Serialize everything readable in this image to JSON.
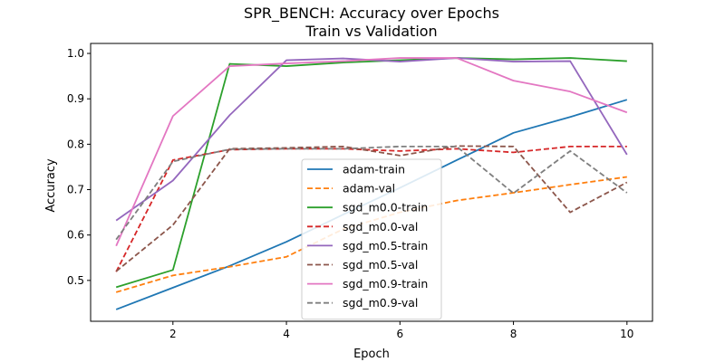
{
  "chart_data": {
    "type": "line",
    "title": "SPR_BENCH: Accuracy over Epochs",
    "subtitle": "Train vs Validation",
    "xlabel": "Epoch",
    "ylabel": "Accuracy",
    "xlim": [
      0.55,
      10.45
    ],
    "ylim": [
      0.41,
      1.022
    ],
    "xticks": [
      2,
      4,
      6,
      8,
      10
    ],
    "yticks": [
      0.5,
      0.6,
      0.7,
      0.8,
      0.9,
      1.0
    ],
    "ytick_labels": [
      "0.5",
      "0.6",
      "0.7",
      "0.8",
      "0.9",
      "1.0"
    ],
    "grid": false,
    "legend_position": "lower center",
    "x": [
      1,
      2,
      3,
      4,
      5,
      6,
      7,
      8,
      9,
      10
    ],
    "series": [
      {
        "name": "adam-train",
        "color": "#1f77b4",
        "dash": "solid",
        "values": [
          0.436,
          0.484,
          0.532,
          0.585,
          0.645,
          0.704,
          0.765,
          0.825,
          0.86,
          0.898
        ]
      },
      {
        "name": "adam-val",
        "color": "#ff7f0e",
        "dash": "dashed",
        "values": [
          0.474,
          0.511,
          0.53,
          0.552,
          0.613,
          0.65,
          0.676,
          0.693,
          0.711,
          0.728
        ]
      },
      {
        "name": "sgd_m0.0-train",
        "color": "#2ca02c",
        "dash": "solid",
        "values": [
          0.485,
          0.523,
          0.977,
          0.972,
          0.98,
          0.985,
          0.99,
          0.987,
          0.99,
          0.983
        ]
      },
      {
        "name": "sgd_m0.0-val",
        "color": "#d62728",
        "dash": "dashed",
        "values": [
          0.519,
          0.765,
          0.788,
          0.79,
          0.79,
          0.785,
          0.79,
          0.782,
          0.795,
          0.795
        ]
      },
      {
        "name": "sgd_m0.5-train",
        "color": "#9467bd",
        "dash": "solid",
        "values": [
          0.632,
          0.72,
          0.864,
          0.985,
          0.989,
          0.982,
          0.99,
          0.982,
          0.983,
          0.777
        ]
      },
      {
        "name": "sgd_m0.5-val",
        "color": "#8c564b",
        "dash": "dashed",
        "values": [
          0.52,
          0.622,
          0.79,
          0.792,
          0.795,
          0.775,
          0.796,
          0.795,
          0.65,
          0.716
        ]
      },
      {
        "name": "sgd_m0.9-train",
        "color": "#e377c2",
        "dash": "solid",
        "values": [
          0.576,
          0.862,
          0.972,
          0.978,
          0.983,
          0.99,
          0.99,
          0.94,
          0.916,
          0.87
        ]
      },
      {
        "name": "sgd_m0.9-val",
        "color": "#7f7f7f",
        "dash": "dashed",
        "values": [
          0.59,
          0.762,
          0.789,
          0.79,
          0.79,
          0.795,
          0.795,
          0.692,
          0.785,
          0.693
        ]
      }
    ]
  }
}
